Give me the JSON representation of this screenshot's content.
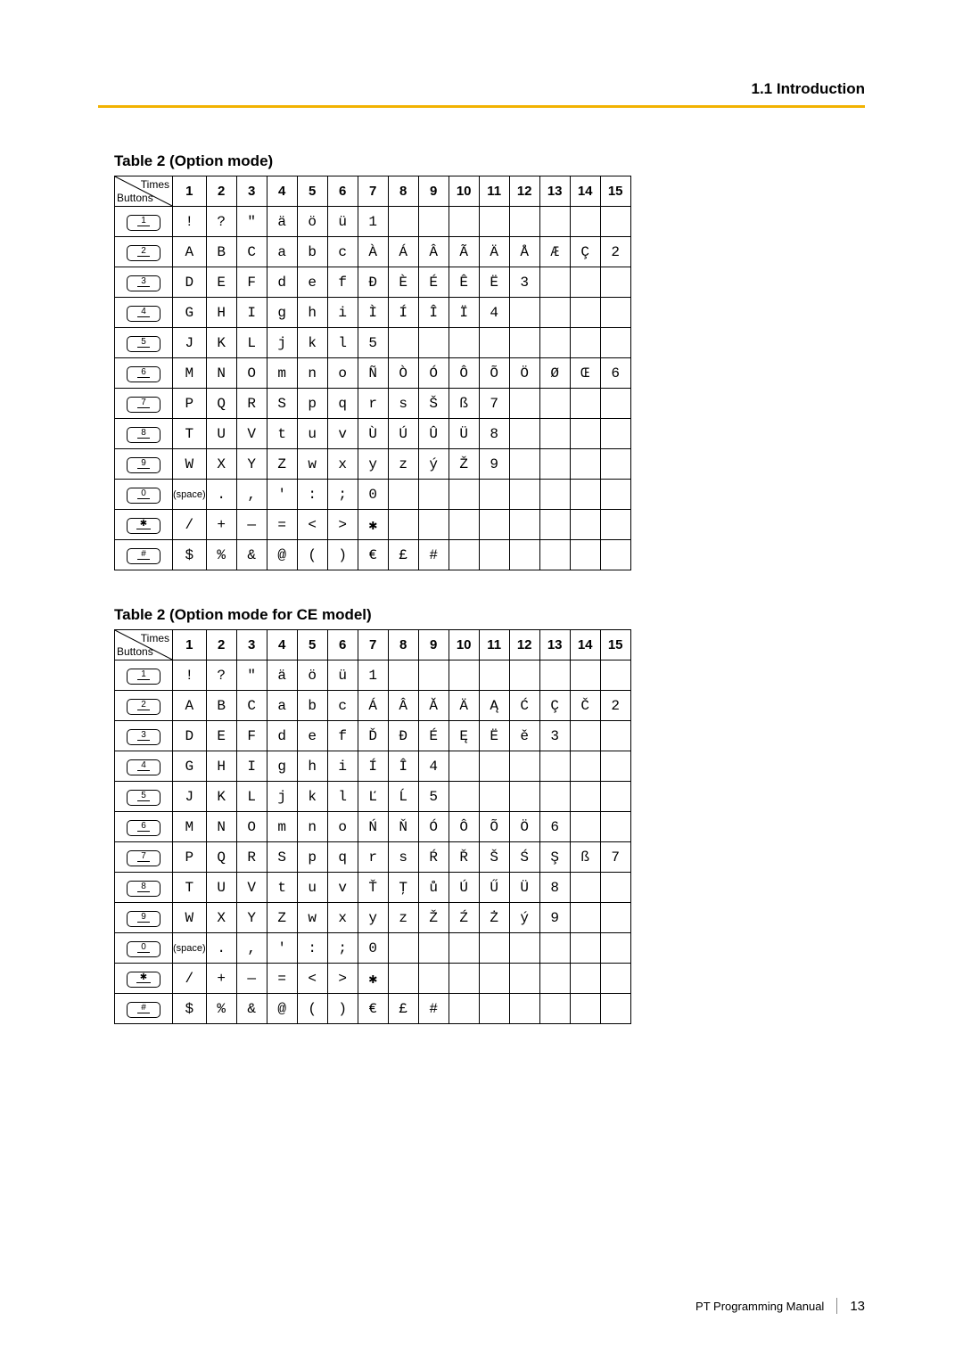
{
  "header": {
    "section": "1.1 Introduction",
    "rule_color": "#f2b200"
  },
  "footer": {
    "doc_title": "PT Programming Manual",
    "page_number": "13"
  },
  "corner_labels": {
    "times": "Times",
    "buttons": "Buttons"
  },
  "col_headers": [
    "1",
    "2",
    "3",
    "4",
    "5",
    "6",
    "7",
    "8",
    "9",
    "10",
    "11",
    "12",
    "13",
    "14",
    "15"
  ],
  "button_labels": [
    "1",
    "2",
    "3",
    "4",
    "5",
    "6",
    "7",
    "8",
    "9",
    "0",
    "✱",
    "#"
  ],
  "table1": {
    "title": "Table 2 (Option mode)",
    "rows": [
      [
        "!",
        "?",
        "\"",
        "ä",
        "ö",
        "ü",
        "1",
        "",
        "",
        "",
        "",
        "",
        "",
        "",
        ""
      ],
      [
        "A",
        "B",
        "C",
        "a",
        "b",
        "c",
        "À",
        "Á",
        "Â",
        "Ã",
        "Ä",
        "Å",
        "Æ",
        "Ç",
        "2"
      ],
      [
        "D",
        "E",
        "F",
        "d",
        "e",
        "f",
        "Ð",
        "È",
        "É",
        "Ê",
        "Ë",
        "3",
        "",
        "",
        ""
      ],
      [
        "G",
        "H",
        "I",
        "g",
        "h",
        "i",
        "Ì",
        "Í",
        "Î",
        "Ï",
        "4",
        "",
        "",
        "",
        ""
      ],
      [
        "J",
        "K",
        "L",
        "j",
        "k",
        "l",
        "5",
        "",
        "",
        "",
        "",
        "",
        "",
        "",
        ""
      ],
      [
        "M",
        "N",
        "O",
        "m",
        "n",
        "o",
        "Ñ",
        "Ò",
        "Ó",
        "Ô",
        "Õ",
        "Ö",
        "Ø",
        "Œ",
        "6"
      ],
      [
        "P",
        "Q",
        "R",
        "S",
        "p",
        "q",
        "r",
        "s",
        "Š",
        "ß",
        "7",
        "",
        "",
        "",
        ""
      ],
      [
        "T",
        "U",
        "V",
        "t",
        "u",
        "v",
        "Ù",
        "Ú",
        "Û",
        "Ü",
        "8",
        "",
        "",
        "",
        ""
      ],
      [
        "W",
        "X",
        "Y",
        "Z",
        "w",
        "x",
        "y",
        "z",
        "ý",
        "Ž",
        "9",
        "",
        "",
        "",
        ""
      ],
      [
        "(space)",
        ".",
        ",",
        "'",
        ":",
        ";",
        "0",
        "",
        "",
        "",
        "",
        "",
        "",
        "",
        ""
      ],
      [
        "/",
        "+",
        "—",
        "=",
        "<",
        ">",
        "✱",
        "",
        "",
        "",
        "",
        "",
        "",
        "",
        ""
      ],
      [
        "$",
        "%",
        "&",
        "@",
        "(",
        ")",
        "€",
        "£",
        "#",
        "",
        "",
        "",
        "",
        "",
        ""
      ]
    ]
  },
  "table2": {
    "title": "Table 2 (Option mode for CE model)",
    "rows": [
      [
        "!",
        "?",
        "\"",
        "ä",
        "ö",
        "ü",
        "1",
        "",
        "",
        "",
        "",
        "",
        "",
        "",
        ""
      ],
      [
        "A",
        "B",
        "C",
        "a",
        "b",
        "c",
        "Á",
        "Â",
        "Ă",
        "Ä",
        "Ą",
        "Ć",
        "Ç",
        "Č",
        "2"
      ],
      [
        "D",
        "E",
        "F",
        "d",
        "e",
        "f",
        "Ď",
        "Đ",
        "É",
        "Ę",
        "Ë",
        "ě",
        "3",
        "",
        ""
      ],
      [
        "G",
        "H",
        "I",
        "g",
        "h",
        "i",
        "Í",
        "Î",
        "4",
        "",
        "",
        "",
        "",
        "",
        ""
      ],
      [
        "J",
        "K",
        "L",
        "j",
        "k",
        "l",
        "Ľ",
        "Ĺ",
        "5",
        "",
        "",
        "",
        "",
        "",
        ""
      ],
      [
        "M",
        "N",
        "O",
        "m",
        "n",
        "o",
        "Ń",
        "Ň",
        "Ó",
        "Ô",
        "Õ",
        "Ö",
        "6",
        "",
        ""
      ],
      [
        "P",
        "Q",
        "R",
        "S",
        "p",
        "q",
        "r",
        "s",
        "Ŕ",
        "Ř",
        "Š",
        "Ś",
        "Ş",
        "ß",
        "7"
      ],
      [
        "T",
        "U",
        "V",
        "t",
        "u",
        "v",
        "Ť",
        "Ţ",
        "ů",
        "Ú",
        "Ű",
        "Ü",
        "8",
        "",
        ""
      ],
      [
        "W",
        "X",
        "Y",
        "Z",
        "w",
        "x",
        "y",
        "z",
        "Ž",
        "Ź",
        "Ż",
        "ý",
        "9",
        "",
        ""
      ],
      [
        "(space)",
        ".",
        ",",
        "'",
        ":",
        ";",
        "0",
        "",
        "",
        "",
        "",
        "",
        "",
        "",
        ""
      ],
      [
        "/",
        "+",
        "—",
        "=",
        "<",
        ">",
        "✱",
        "",
        "",
        "",
        "",
        "",
        "",
        "",
        ""
      ],
      [
        "$",
        "%",
        "&",
        "@",
        "(",
        ")",
        "€",
        "£",
        "#",
        "",
        "",
        "",
        "",
        "",
        ""
      ]
    ]
  }
}
